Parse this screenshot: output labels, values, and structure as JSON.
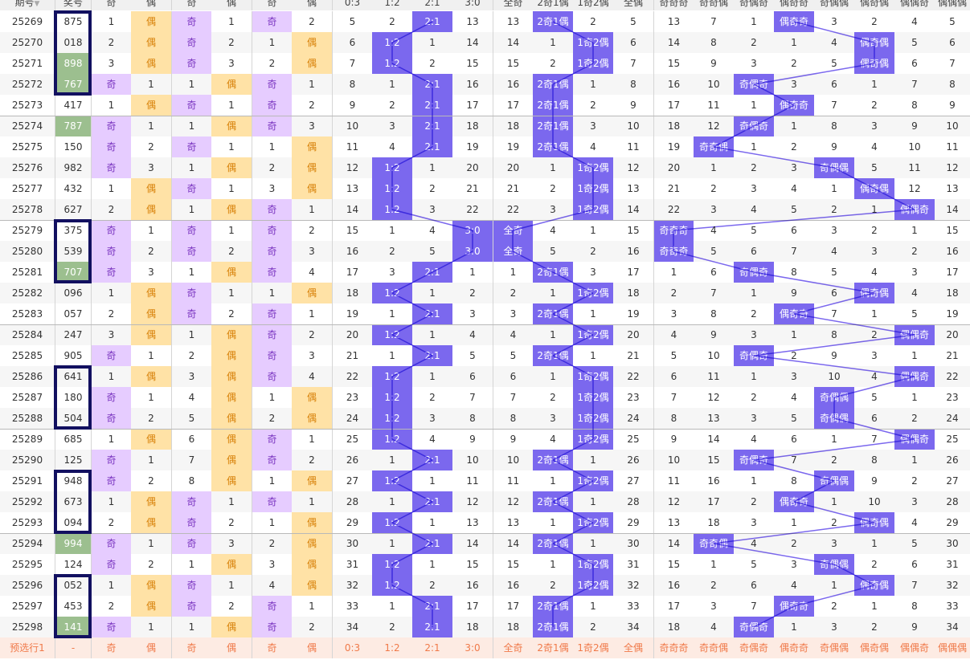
{
  "header": [
    "期号",
    "奖号",
    "奇",
    "偶",
    "奇",
    "偶",
    "奇",
    "偶",
    "0:3",
    "1:2",
    "2:1",
    "3:0",
    "全奇",
    "2奇1偶",
    "1奇2偶",
    "全偶",
    "奇奇奇",
    "奇奇偶",
    "奇偶奇",
    "偶奇奇",
    "奇偶偶",
    "偶奇偶",
    "偶偶奇",
    "偶偶偶"
  ],
  "sort_icon": "sort-down-icon",
  "colors": {
    "odd_bg": "#e6ccff",
    "even_bg": "#ffe2a6",
    "highlight": "#7b68ee",
    "frame": "#121060",
    "green": "#9cbf8f"
  },
  "rows": [
    {
      "issue": "25269",
      "num": "875",
      "c": [
        "1",
        "偶",
        "奇",
        "1",
        "奇",
        "2",
        "5",
        "2",
        "2:1",
        "13",
        "13",
        "2奇1偶",
        "2",
        "5",
        "13",
        "7",
        "1",
        "偶奇奇",
        "3",
        "2",
        "4",
        "5"
      ]
    },
    {
      "issue": "25270",
      "num": "018",
      "c": [
        "2",
        "偶",
        "奇",
        "2",
        "1",
        "偶",
        "6",
        "1:2",
        "1",
        "14",
        "14",
        "1",
        "1奇2偶",
        "6",
        "14",
        "8",
        "2",
        "1",
        "4",
        "偶奇偶",
        "5",
        "6"
      ]
    },
    {
      "issue": "25271",
      "num": "898",
      "c": [
        "3",
        "偶",
        "奇",
        "3",
        "2",
        "偶",
        "7",
        "1:2",
        "2",
        "15",
        "15",
        "2",
        "1奇2偶",
        "7",
        "15",
        "9",
        "3",
        "2",
        "5",
        "偶奇偶",
        "6",
        "7"
      ]
    },
    {
      "issue": "25272",
      "num": "767",
      "c": [
        "奇",
        "1",
        "1",
        "偶",
        "奇",
        "1",
        "8",
        "1",
        "2:1",
        "16",
        "16",
        "2奇1偶",
        "1",
        "8",
        "16",
        "10",
        "奇偶奇",
        "3",
        "6",
        "1",
        "7",
        "8"
      ]
    },
    {
      "issue": "25273",
      "num": "417",
      "c": [
        "1",
        "偶",
        "奇",
        "1",
        "奇",
        "2",
        "9",
        "2",
        "2:1",
        "17",
        "17",
        "2奇1偶",
        "2",
        "9",
        "17",
        "11",
        "1",
        "偶奇奇",
        "7",
        "2",
        "8",
        "9"
      ]
    },
    {
      "issue": "25274",
      "num": "787",
      "c": [
        "奇",
        "1",
        "1",
        "偶",
        "奇",
        "3",
        "10",
        "3",
        "2:1",
        "18",
        "18",
        "2奇1偶",
        "3",
        "10",
        "18",
        "12",
        "奇偶奇",
        "1",
        "8",
        "3",
        "9",
        "10"
      ]
    },
    {
      "issue": "25275",
      "num": "150",
      "c": [
        "奇",
        "2",
        "奇",
        "1",
        "1",
        "偶",
        "11",
        "4",
        "2:1",
        "19",
        "19",
        "2奇1偶",
        "4",
        "11",
        "19",
        "奇奇偶",
        "1",
        "2",
        "9",
        "4",
        "10",
        "11"
      ]
    },
    {
      "issue": "25276",
      "num": "982",
      "c": [
        "奇",
        "3",
        "1",
        "偶",
        "2",
        "偶",
        "12",
        "1:2",
        "1",
        "20",
        "20",
        "1",
        "1奇2偶",
        "12",
        "20",
        "1",
        "2",
        "3",
        "奇偶偶",
        "5",
        "11",
        "12"
      ]
    },
    {
      "issue": "25277",
      "num": "432",
      "c": [
        "1",
        "偶",
        "奇",
        "1",
        "3",
        "偶",
        "13",
        "1:2",
        "2",
        "21",
        "21",
        "2",
        "1奇2偶",
        "13",
        "21",
        "2",
        "3",
        "4",
        "1",
        "偶奇偶",
        "12",
        "13"
      ]
    },
    {
      "issue": "25278",
      "num": "627",
      "c": [
        "2",
        "偶",
        "1",
        "偶",
        "奇",
        "1",
        "14",
        "1:2",
        "3",
        "22",
        "22",
        "3",
        "1奇2偶",
        "14",
        "22",
        "3",
        "4",
        "5",
        "2",
        "1",
        "偶偶奇",
        "14"
      ]
    },
    {
      "issue": "25279",
      "num": "375",
      "c": [
        "奇",
        "1",
        "奇",
        "1",
        "奇",
        "2",
        "15",
        "1",
        "4",
        "3:0",
        "全奇",
        "4",
        "1",
        "15",
        "奇奇奇",
        "4",
        "5",
        "6",
        "3",
        "2",
        "1",
        "15"
      ]
    },
    {
      "issue": "25280",
      "num": "539",
      "c": [
        "奇",
        "2",
        "奇",
        "2",
        "奇",
        "3",
        "16",
        "2",
        "5",
        "3:0",
        "全奇",
        "5",
        "2",
        "16",
        "奇奇奇",
        "5",
        "6",
        "7",
        "4",
        "3",
        "2",
        "16"
      ]
    },
    {
      "issue": "25281",
      "num": "707",
      "c": [
        "奇",
        "3",
        "1",
        "偶",
        "奇",
        "4",
        "17",
        "3",
        "2:1",
        "1",
        "1",
        "2奇1偶",
        "3",
        "17",
        "1",
        "6",
        "奇偶奇",
        "8",
        "5",
        "4",
        "3",
        "17"
      ]
    },
    {
      "issue": "25282",
      "num": "096",
      "c": [
        "1",
        "偶",
        "奇",
        "1",
        "1",
        "偶",
        "18",
        "1:2",
        "1",
        "2",
        "2",
        "1",
        "1奇2偶",
        "18",
        "2",
        "7",
        "1",
        "9",
        "6",
        "偶奇偶",
        "4",
        "18"
      ]
    },
    {
      "issue": "25283",
      "num": "057",
      "c": [
        "2",
        "偶",
        "奇",
        "2",
        "奇",
        "1",
        "19",
        "1",
        "2:1",
        "3",
        "3",
        "2奇1偶",
        "1",
        "19",
        "3",
        "8",
        "2",
        "偶奇奇",
        "7",
        "1",
        "5",
        "19"
      ]
    },
    {
      "issue": "25284",
      "num": "247",
      "c": [
        "3",
        "偶",
        "1",
        "偶",
        "奇",
        "2",
        "20",
        "1:2",
        "1",
        "4",
        "4",
        "1",
        "1奇2偶",
        "20",
        "4",
        "9",
        "3",
        "1",
        "8",
        "2",
        "偶偶奇",
        "20"
      ]
    },
    {
      "issue": "25285",
      "num": "905",
      "c": [
        "奇",
        "1",
        "2",
        "偶",
        "奇",
        "3",
        "21",
        "1",
        "2:1",
        "5",
        "5",
        "2奇1偶",
        "1",
        "21",
        "5",
        "10",
        "奇偶奇",
        "2",
        "9",
        "3",
        "1",
        "21"
      ]
    },
    {
      "issue": "25286",
      "num": "641",
      "c": [
        "1",
        "偶",
        "3",
        "偶",
        "奇",
        "4",
        "22",
        "1:2",
        "1",
        "6",
        "6",
        "1",
        "1奇2偶",
        "22",
        "6",
        "11",
        "1",
        "3",
        "10",
        "4",
        "偶偶奇",
        "22"
      ]
    },
    {
      "issue": "25287",
      "num": "180",
      "c": [
        "奇",
        "1",
        "4",
        "偶",
        "1",
        "偶",
        "23",
        "1:2",
        "2",
        "7",
        "7",
        "2",
        "1奇2偶",
        "23",
        "7",
        "12",
        "2",
        "4",
        "奇偶偶",
        "5",
        "1",
        "23"
      ]
    },
    {
      "issue": "25288",
      "num": "504",
      "c": [
        "奇",
        "2",
        "5",
        "偶",
        "2",
        "偶",
        "24",
        "1:2",
        "3",
        "8",
        "8",
        "3",
        "1奇2偶",
        "24",
        "8",
        "13",
        "3",
        "5",
        "奇偶偶",
        "6",
        "2",
        "24"
      ]
    },
    {
      "issue": "25289",
      "num": "685",
      "c": [
        "1",
        "偶",
        "6",
        "偶",
        "奇",
        "1",
        "25",
        "1:2",
        "4",
        "9",
        "9",
        "4",
        "1奇2偶",
        "25",
        "9",
        "14",
        "4",
        "6",
        "1",
        "7",
        "偶偶奇",
        "25"
      ]
    },
    {
      "issue": "25290",
      "num": "125",
      "c": [
        "奇",
        "1",
        "7",
        "偶",
        "奇",
        "2",
        "26",
        "1",
        "2:1",
        "10",
        "10",
        "2奇1偶",
        "1",
        "26",
        "10",
        "15",
        "奇偶奇",
        "7",
        "2",
        "8",
        "1",
        "26"
      ]
    },
    {
      "issue": "25291",
      "num": "948",
      "c": [
        "奇",
        "2",
        "8",
        "偶",
        "1",
        "偶",
        "27",
        "1:2",
        "1",
        "11",
        "11",
        "1",
        "1奇2偶",
        "27",
        "11",
        "16",
        "1",
        "8",
        "奇偶偶",
        "9",
        "2",
        "27"
      ]
    },
    {
      "issue": "25292",
      "num": "673",
      "c": [
        "1",
        "偶",
        "奇",
        "1",
        "奇",
        "1",
        "28",
        "1",
        "2:1",
        "12",
        "12",
        "2奇1偶",
        "1",
        "28",
        "12",
        "17",
        "2",
        "偶奇奇",
        "1",
        "10",
        "3",
        "28"
      ]
    },
    {
      "issue": "25293",
      "num": "094",
      "c": [
        "2",
        "偶",
        "奇",
        "2",
        "1",
        "偶",
        "29",
        "1:2",
        "1",
        "13",
        "13",
        "1",
        "1奇2偶",
        "29",
        "13",
        "18",
        "3",
        "1",
        "2",
        "偶奇偶",
        "4",
        "29"
      ]
    },
    {
      "issue": "25294",
      "num": "994",
      "c": [
        "奇",
        "1",
        "奇",
        "3",
        "2",
        "偶",
        "30",
        "1",
        "2:1",
        "14",
        "14",
        "2奇1偶",
        "1",
        "30",
        "14",
        "奇奇偶",
        "4",
        "2",
        "3",
        "1",
        "5",
        "30"
      ]
    },
    {
      "issue": "25295",
      "num": "124",
      "c": [
        "奇",
        "2",
        "1",
        "偶",
        "3",
        "偶",
        "31",
        "1:2",
        "1",
        "15",
        "15",
        "1",
        "1奇2偶",
        "31",
        "15",
        "1",
        "5",
        "3",
        "奇偶偶",
        "2",
        "6",
        "31"
      ]
    },
    {
      "issue": "25296",
      "num": "052",
      "c": [
        "1",
        "偶",
        "奇",
        "1",
        "4",
        "偶",
        "32",
        "1:2",
        "2",
        "16",
        "16",
        "2",
        "1奇2偶",
        "32",
        "16",
        "2",
        "6",
        "4",
        "1",
        "偶奇偶",
        "7",
        "32"
      ]
    },
    {
      "issue": "25297",
      "num": "453",
      "c": [
        "2",
        "偶",
        "奇",
        "2",
        "奇",
        "1",
        "33",
        "1",
        "2:1",
        "17",
        "17",
        "2奇1偶",
        "1",
        "33",
        "17",
        "3",
        "7",
        "偶奇奇",
        "2",
        "1",
        "8",
        "33"
      ]
    },
    {
      "issue": "25298",
      "num": "141",
      "c": [
        "奇",
        "1",
        "1",
        "偶",
        "奇",
        "2",
        "34",
        "2",
        "2:1",
        "18",
        "18",
        "2奇1偶",
        "2",
        "34",
        "18",
        "4",
        "奇偶奇",
        "1",
        "3",
        "2",
        "9",
        "34"
      ]
    }
  ],
  "green_nums": [
    "898",
    "767",
    "787",
    "707",
    "994",
    "141"
  ],
  "boxed_ranges": [
    [
      0,
      3
    ],
    [
      10,
      12
    ],
    [
      17,
      19
    ],
    [
      22,
      24
    ],
    [
      27,
      29
    ]
  ],
  "pred": [
    "预选行1",
    "-",
    "奇",
    "偶",
    "奇",
    "偶",
    "奇",
    "偶",
    "0:3",
    "1:2",
    "2:1",
    "3:0",
    "全奇",
    "2奇1偶",
    "1奇2偶",
    "全偶",
    "奇奇奇",
    "奇奇偶",
    "奇偶奇",
    "偶奇奇",
    "奇偶偶",
    "偶奇偶",
    "偶偶奇",
    "偶偶偶"
  ]
}
